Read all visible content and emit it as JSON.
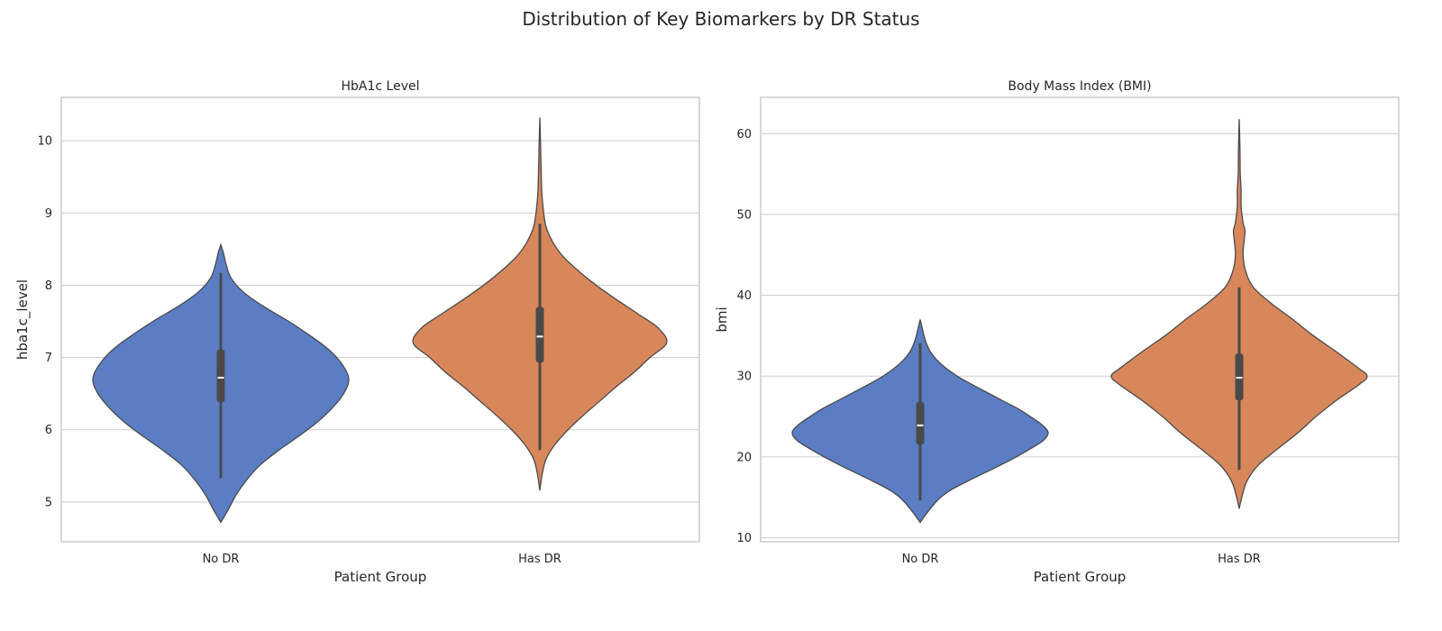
{
  "suptitle": "Distribution of Key Biomarkers by DR Status",
  "colors": {
    "No DR": "#5a7dc4",
    "Has DR": "#d8875b",
    "edge": "#4a4a4a",
    "grid": "#cfcfcf",
    "frame": "#c8c8c8"
  },
  "chart_data": [
    {
      "type": "violin",
      "title": "HbA1c Level",
      "xlabel": "Patient Group",
      "ylabel": "hba1c_level",
      "categories": [
        "No DR",
        "Has DR"
      ],
      "ylim": [
        4.45,
        10.6
      ],
      "yticks": [
        5,
        6,
        7,
        8,
        9,
        10
      ],
      "grid": true,
      "groups": [
        {
          "name": "No DR",
          "min": 4.72,
          "max": 8.56,
          "whisker_low": 5.33,
          "whisker_high": 8.17,
          "q1": 6.38,
          "median": 6.72,
          "q3": 7.11,
          "density": [
            [
              4.72,
              0.0
            ],
            [
              4.9,
              0.06
            ],
            [
              5.1,
              0.12
            ],
            [
              5.3,
              0.2
            ],
            [
              5.5,
              0.3
            ],
            [
              5.7,
              0.44
            ],
            [
              5.9,
              0.6
            ],
            [
              6.1,
              0.75
            ],
            [
              6.3,
              0.87
            ],
            [
              6.5,
              0.96
            ],
            [
              6.7,
              1.0
            ],
            [
              6.9,
              0.95
            ],
            [
              7.1,
              0.85
            ],
            [
              7.3,
              0.7
            ],
            [
              7.5,
              0.53
            ],
            [
              7.7,
              0.34
            ],
            [
              7.9,
              0.18
            ],
            [
              8.1,
              0.08
            ],
            [
              8.3,
              0.04
            ],
            [
              8.45,
              0.02
            ],
            [
              8.56,
              0.0
            ]
          ]
        },
        {
          "name": "Has DR",
          "min": 5.16,
          "max": 10.32,
          "whisker_low": 5.72,
          "whisker_high": 8.85,
          "q1": 6.93,
          "median": 7.29,
          "q3": 7.7,
          "density": [
            [
              5.16,
              0.0
            ],
            [
              5.4,
              0.02
            ],
            [
              5.6,
              0.05
            ],
            [
              5.8,
              0.12
            ],
            [
              6.0,
              0.22
            ],
            [
              6.2,
              0.34
            ],
            [
              6.4,
              0.47
            ],
            [
              6.6,
              0.6
            ],
            [
              6.8,
              0.74
            ],
            [
              7.0,
              0.86
            ],
            [
              7.2,
              0.99
            ],
            [
              7.4,
              0.93
            ],
            [
              7.6,
              0.77
            ],
            [
              7.8,
              0.6
            ],
            [
              8.0,
              0.44
            ],
            [
              8.2,
              0.3
            ],
            [
              8.4,
              0.18
            ],
            [
              8.6,
              0.1
            ],
            [
              8.8,
              0.05
            ],
            [
              9.0,
              0.03
            ],
            [
              9.3,
              0.015
            ],
            [
              9.6,
              0.01
            ],
            [
              10.0,
              0.005
            ],
            [
              10.32,
              0.0
            ]
          ]
        }
      ]
    },
    {
      "type": "violin",
      "title": "Body Mass Index (BMI)",
      "xlabel": "Patient Group",
      "ylabel": "bmi",
      "categories": [
        "No DR",
        "Has DR"
      ],
      "ylim": [
        9.5,
        64.5
      ],
      "yticks": [
        10,
        20,
        30,
        40,
        50,
        60
      ],
      "grid": true,
      "groups": [
        {
          "name": "No DR",
          "min": 11.9,
          "max": 37.0,
          "whisker_low": 14.6,
          "whisker_high": 34.1,
          "q1": 21.5,
          "median": 23.9,
          "q3": 26.8,
          "density": [
            [
              11.9,
              0.0
            ],
            [
              13,
              0.05
            ],
            [
              14,
              0.1
            ],
            [
              15,
              0.16
            ],
            [
              16,
              0.25
            ],
            [
              17,
              0.37
            ],
            [
              18,
              0.5
            ],
            [
              19,
              0.63
            ],
            [
              20,
              0.75
            ],
            [
              21,
              0.86
            ],
            [
              22,
              0.96
            ],
            [
              23,
              1.0
            ],
            [
              24,
              0.95
            ],
            [
              25,
              0.86
            ],
            [
              26,
              0.76
            ],
            [
              27,
              0.64
            ],
            [
              28,
              0.52
            ],
            [
              29,
              0.4
            ],
            [
              30,
              0.29
            ],
            [
              31,
              0.2
            ],
            [
              32,
              0.13
            ],
            [
              33,
              0.08
            ],
            [
              34,
              0.05
            ],
            [
              35,
              0.03
            ],
            [
              36,
              0.015
            ],
            [
              37,
              0.0
            ]
          ]
        },
        {
          "name": "Has DR",
          "min": 13.6,
          "max": 61.8,
          "whisker_low": 18.4,
          "whisker_high": 41.0,
          "q1": 27.0,
          "median": 29.8,
          "q3": 32.8,
          "density": [
            [
              13.6,
              0.0
            ],
            [
              15,
              0.02
            ],
            [
              17,
              0.06
            ],
            [
              19,
              0.15
            ],
            [
              21,
              0.3
            ],
            [
              23,
              0.46
            ],
            [
              25,
              0.6
            ],
            [
              27,
              0.76
            ],
            [
              29,
              0.94
            ],
            [
              30,
              1.0
            ],
            [
              31,
              0.93
            ],
            [
              33,
              0.76
            ],
            [
              35,
              0.58
            ],
            [
              37,
              0.42
            ],
            [
              39,
              0.25
            ],
            [
              41,
              0.11
            ],
            [
              43,
              0.05
            ],
            [
              45,
              0.03
            ],
            [
              47,
              0.04
            ],
            [
              48,
              0.045
            ],
            [
              49,
              0.03
            ],
            [
              51,
              0.015
            ],
            [
              53,
              0.015
            ],
            [
              55,
              0.008
            ],
            [
              58,
              0.006
            ],
            [
              61.8,
              0.0
            ]
          ]
        }
      ]
    }
  ]
}
